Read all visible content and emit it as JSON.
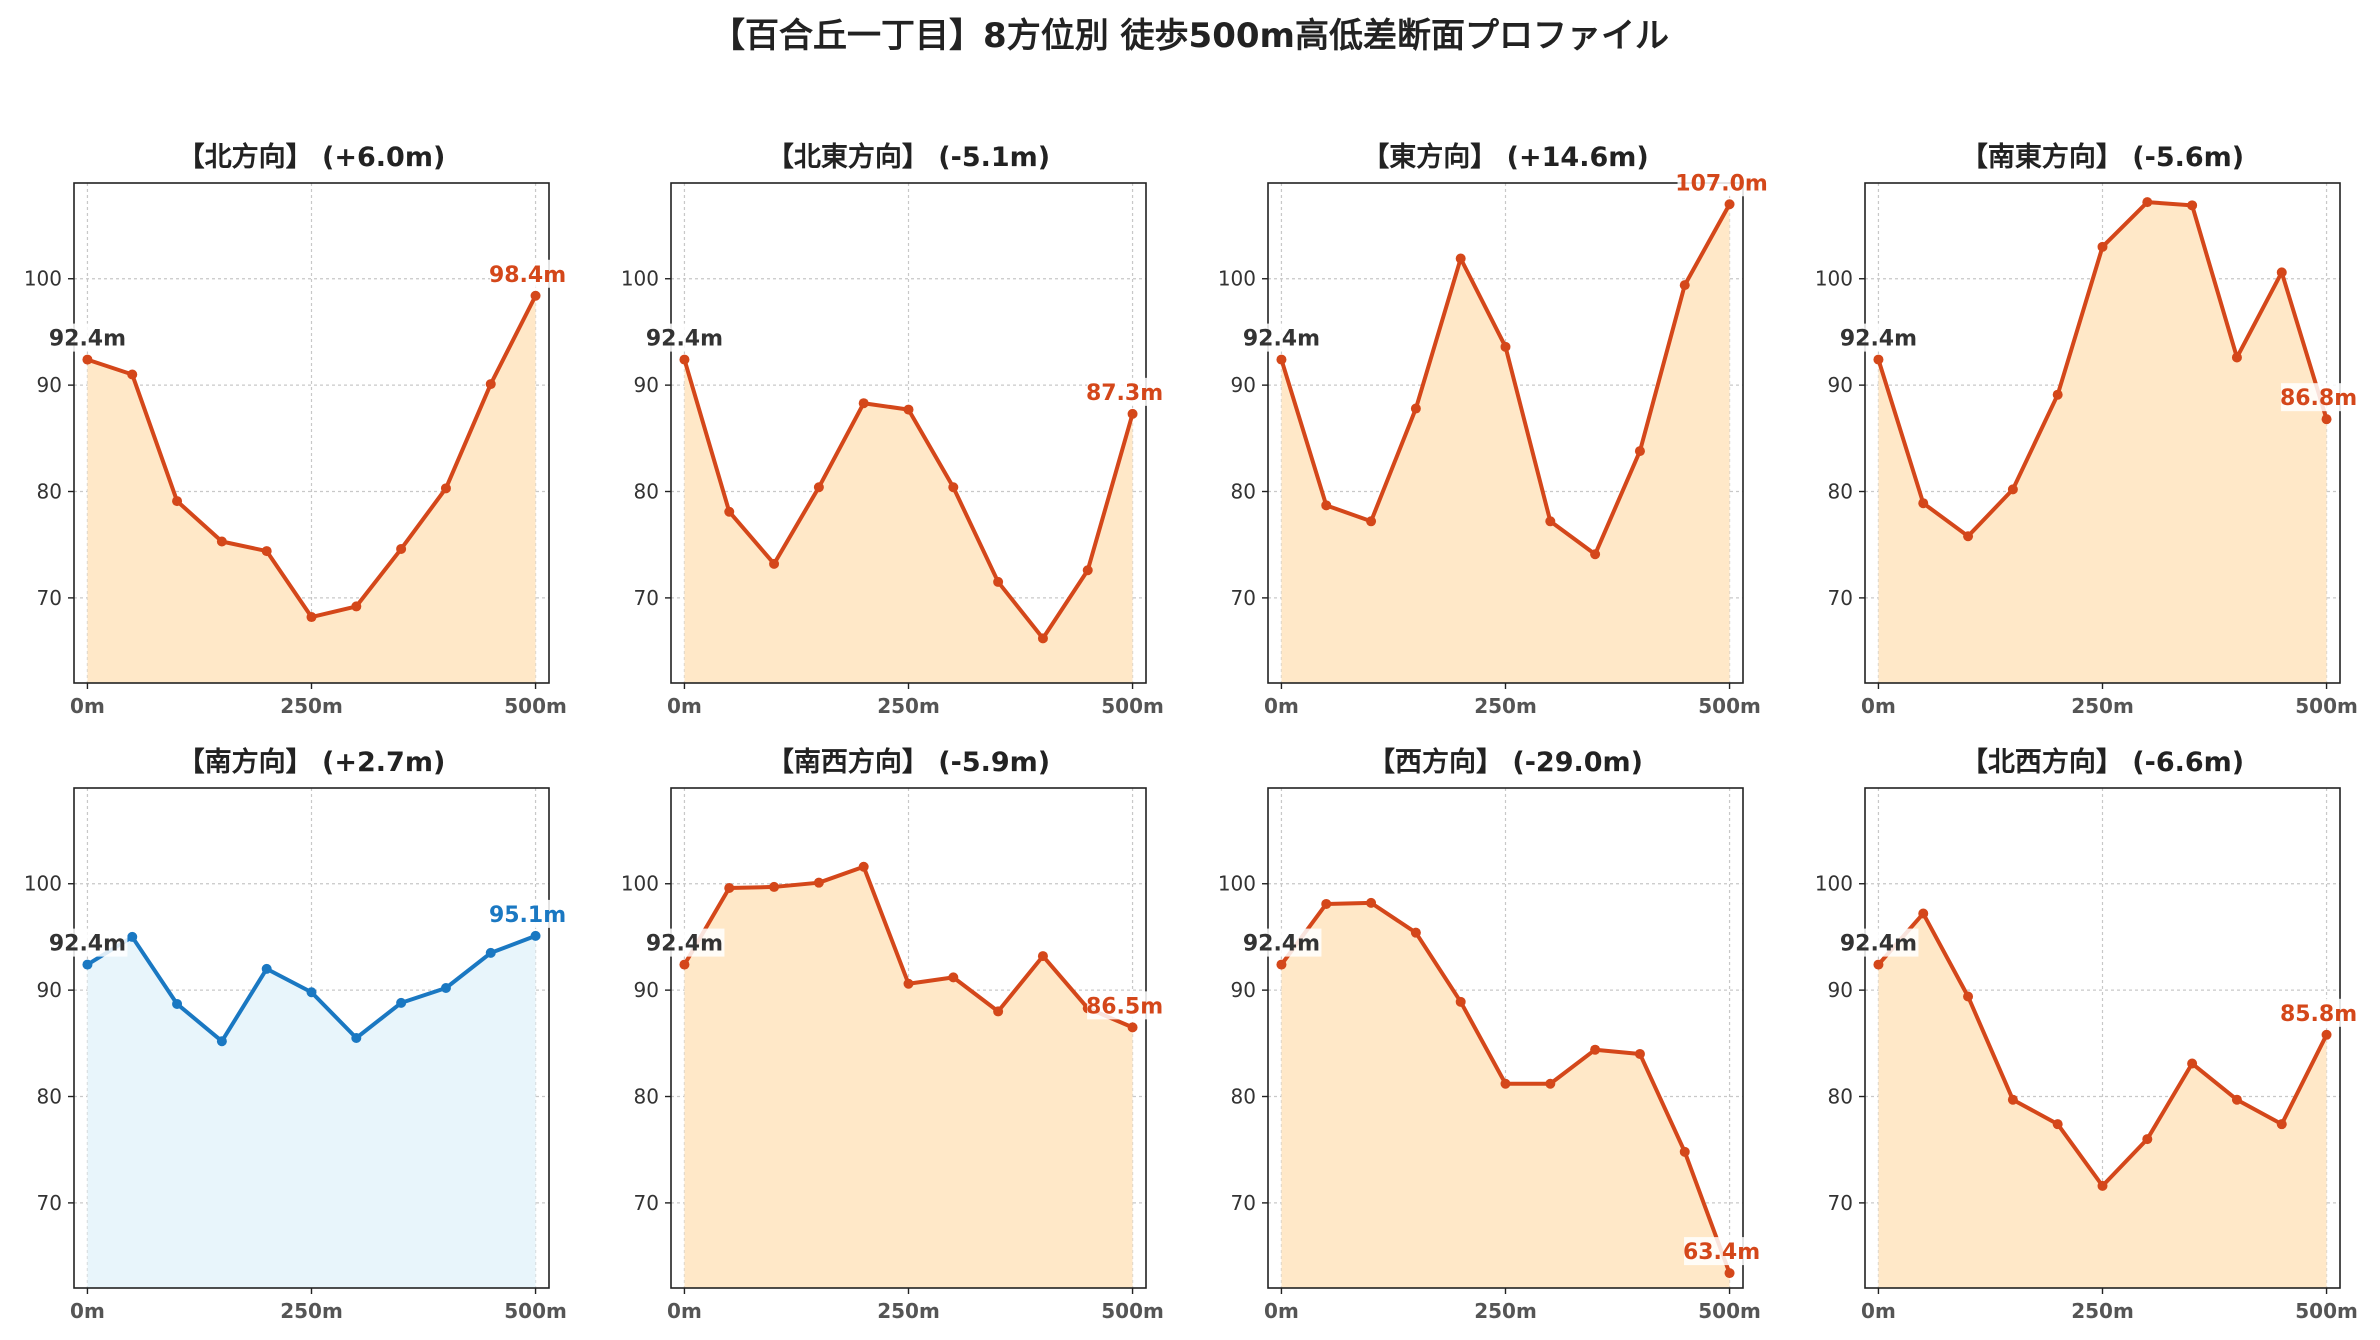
{
  "title": "【百合丘一丁目】8方位別 徒歩500m高低差断面プロファイル",
  "colors": {
    "up_line": "#d4471a",
    "up_fill": "#ffe8c8",
    "down_line": "#1a78c2",
    "down_fill": "#e8f5fb",
    "start_label": "#333333"
  },
  "shared_axes": {
    "x_ticks": [
      "0m",
      "250m",
      "500m"
    ],
    "x_tick_values": [
      0,
      250,
      500
    ],
    "y_ticks": [
      70,
      80,
      90,
      100
    ],
    "xlim": [
      -15,
      515
    ],
    "ylim": [
      62,
      109
    ]
  },
  "chart_data": [
    {
      "type": "area",
      "title": "【北方向】 (+6.0m)",
      "style": "orange",
      "x": [
        0,
        50,
        100,
        150,
        200,
        250,
        300,
        350,
        400,
        450,
        500
      ],
      "y": [
        92.4,
        91.0,
        79.1,
        75.3,
        74.4,
        68.2,
        69.2,
        74.6,
        80.3,
        90.1,
        98.4
      ],
      "start_label": "92.4m",
      "end_label": "98.4m"
    },
    {
      "type": "area",
      "title": "【北東方向】 (-5.1m)",
      "style": "orange",
      "x": [
        0,
        50,
        100,
        150,
        200,
        250,
        300,
        350,
        400,
        450,
        500
      ],
      "y": [
        92.4,
        78.1,
        73.2,
        80.4,
        88.3,
        87.7,
        80.4,
        71.5,
        66.2,
        72.6,
        87.3
      ],
      "start_label": "92.4m",
      "end_label": "87.3m"
    },
    {
      "type": "area",
      "title": "【東方向】 (+14.6m)",
      "style": "orange",
      "x": [
        0,
        50,
        100,
        150,
        200,
        250,
        300,
        350,
        400,
        450,
        500
      ],
      "y": [
        92.4,
        78.7,
        77.2,
        87.8,
        101.9,
        93.6,
        77.2,
        74.1,
        83.8,
        99.4,
        107.0
      ],
      "start_label": "92.4m",
      "end_label": "107.0m"
    },
    {
      "type": "area",
      "title": "【南東方向】 (-5.6m)",
      "style": "orange",
      "x": [
        0,
        50,
        100,
        150,
        200,
        250,
        300,
        350,
        400,
        450,
        500
      ],
      "y": [
        92.4,
        78.9,
        75.8,
        80.2,
        89.1,
        103.0,
        107.2,
        106.9,
        92.6,
        100.6,
        86.8
      ],
      "start_label": "92.4m",
      "end_label": "86.8m"
    },
    {
      "type": "area",
      "title": "【南方向】 (+2.7m)",
      "style": "blue",
      "x": [
        0,
        50,
        100,
        150,
        200,
        250,
        300,
        350,
        400,
        450,
        500
      ],
      "y": [
        92.4,
        95.0,
        88.7,
        85.2,
        92.0,
        89.8,
        85.5,
        88.8,
        90.2,
        93.5,
        95.1
      ],
      "start_label": "92.4m",
      "end_label": "95.1m"
    },
    {
      "type": "area",
      "title": "【南西方向】 (-5.9m)",
      "style": "orange",
      "x": [
        0,
        50,
        100,
        150,
        200,
        250,
        300,
        350,
        400,
        450,
        500
      ],
      "y": [
        92.4,
        99.6,
        99.7,
        100.1,
        101.6,
        90.6,
        91.2,
        88.0,
        93.2,
        88.3,
        86.5
      ],
      "start_label": "92.4m",
      "end_label": "86.5m"
    },
    {
      "type": "area",
      "title": "【西方向】 (-29.0m)",
      "style": "orange",
      "x": [
        0,
        50,
        100,
        150,
        200,
        250,
        300,
        350,
        400,
        450,
        500
      ],
      "y": [
        92.4,
        98.1,
        98.2,
        95.4,
        88.9,
        81.2,
        81.2,
        84.4,
        84.0,
        74.8,
        63.4
      ],
      "start_label": "92.4m",
      "end_label": "63.4m"
    },
    {
      "type": "area",
      "title": "【北西方向】 (-6.6m)",
      "style": "orange",
      "x": [
        0,
        50,
        100,
        150,
        200,
        250,
        300,
        350,
        400,
        450,
        500
      ],
      "y": [
        92.4,
        97.2,
        89.4,
        79.7,
        77.4,
        71.6,
        76.0,
        83.1,
        79.7,
        77.4,
        85.8
      ],
      "start_label": "92.4m",
      "end_label": "85.8m"
    }
  ]
}
